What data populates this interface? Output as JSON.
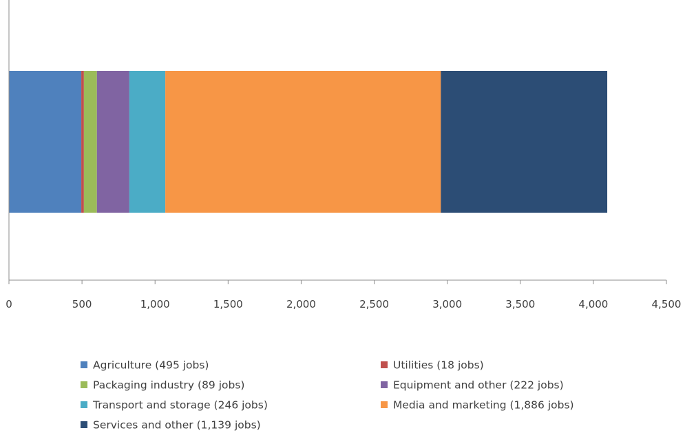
{
  "chart_data": {
    "type": "bar",
    "orientation": "horizontal",
    "stacked": true,
    "title": "",
    "xlabel": "",
    "ylabel": "",
    "xlim": [
      0,
      4500
    ],
    "x_ticks": [
      0,
      500,
      1000,
      1500,
      2000,
      2500,
      3000,
      3500,
      4000,
      4500
    ],
    "x_tick_labels": [
      "0",
      "500",
      "1,000",
      "1,500",
      "2,000",
      "2,500",
      "3,000",
      "3,500",
      "4,000",
      "4,500"
    ],
    "grid": false,
    "legend_position": "bottom",
    "series": [
      {
        "name": "Agriculture (495 jobs)",
        "value": 495,
        "color": "#4f81bd"
      },
      {
        "name": "Utilities (18 jobs)",
        "value": 18,
        "color": "#c0504d"
      },
      {
        "name": "Packaging industry (89 jobs)",
        "value": 89,
        "color": "#9bbb59"
      },
      {
        "name": "Equipment and other (222 jobs)",
        "value": 222,
        "color": "#8064a2"
      },
      {
        "name": "Transport and storage (246 jobs)",
        "value": 246,
        "color": "#4bacc6"
      },
      {
        "name": "Media and marketing (1,886 jobs)",
        "value": 1886,
        "color": "#f79646"
      },
      {
        "name": "Services and other (1,139 jobs)",
        "value": 1139,
        "color": "#2c4d75"
      }
    ]
  }
}
